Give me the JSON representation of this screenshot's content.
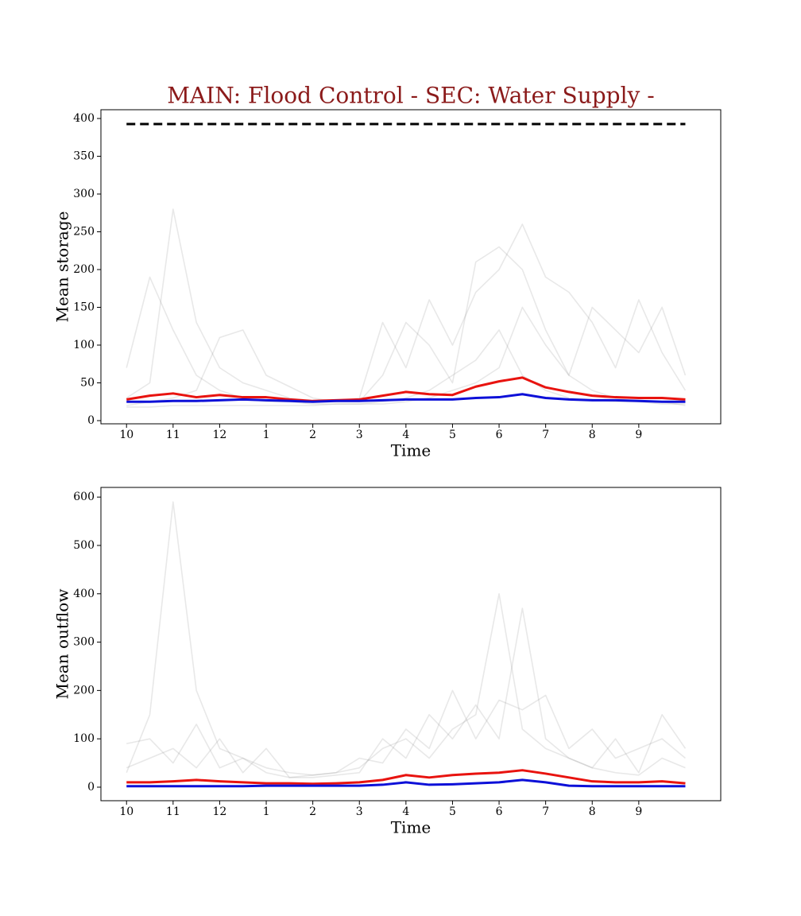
{
  "chart_data": [
    {
      "type": "line",
      "title": "MAIN: Flood Control - SEC: Water Supply -",
      "title_color": "#8b1a1a",
      "xlabel": "Time",
      "ylabel": "Mean storage",
      "x": [
        0,
        0.5,
        1,
        1.5,
        2,
        2.5,
        3,
        3.5,
        4,
        4.5,
        5,
        5.5,
        6,
        6.5,
        7,
        7.5,
        8,
        8.5,
        9,
        9.5,
        10,
        10.5,
        11,
        11.5,
        12
      ],
      "xlim": [
        -0.55,
        12.76
      ],
      "ylim": [
        -4.2,
        411.6
      ],
      "xticks": [
        {
          "value": 0,
          "label": "10"
        },
        {
          "value": 1,
          "label": "11"
        },
        {
          "value": 2,
          "label": "12"
        },
        {
          "value": 3,
          "label": "1"
        },
        {
          "value": 4,
          "label": "2"
        },
        {
          "value": 5,
          "label": "3"
        },
        {
          "value": 6,
          "label": "4"
        },
        {
          "value": 7,
          "label": "5"
        },
        {
          "value": 8,
          "label": "6"
        },
        {
          "value": 9,
          "label": "7"
        },
        {
          "value": 10,
          "label": "8"
        },
        {
          "value": 11,
          "label": "9"
        }
      ],
      "yticks": [
        0,
        50,
        100,
        150,
        200,
        250,
        300,
        350,
        400
      ],
      "hline": 392.6,
      "hline_color": "#000000",
      "series": [
        {
          "color": "rgba(128,128,128,0.18)",
          "values": [
            70,
            190,
            120,
            60,
            40,
            30,
            25,
            25,
            22,
            22,
            22,
            25,
            30,
            40,
            60,
            80,
            120,
            60,
            40,
            30,
            28,
            25,
            25,
            22,
            22
          ]
        },
        {
          "color": "rgba(128,128,128,0.18)",
          "values": [
            30,
            50,
            280,
            130,
            70,
            50,
            40,
            30,
            25,
            25,
            25,
            60,
            130,
            100,
            50,
            210,
            230,
            200,
            120,
            60,
            40,
            30,
            25,
            25,
            20
          ]
        },
        {
          "color": "rgba(128,128,128,0.18)",
          "values": [
            20,
            25,
            30,
            40,
            110,
            120,
            60,
            45,
            30,
            25,
            30,
            130,
            70,
            160,
            100,
            170,
            200,
            260,
            190,
            170,
            130,
            70,
            160,
            90,
            40
          ]
        },
        {
          "color": "rgba(128,128,128,0.18)",
          "values": [
            18,
            18,
            20,
            20,
            20,
            20,
            20,
            20,
            20,
            22,
            22,
            22,
            25,
            30,
            40,
            50,
            70,
            150,
            100,
            60,
            150,
            120,
            90,
            150,
            60
          ]
        },
        {
          "color": "#e8130f",
          "values": [
            28,
            33,
            36,
            31,
            34,
            31,
            31,
            28,
            26,
            27,
            28,
            33,
            38,
            35,
            34,
            45,
            52,
            57,
            44,
            38,
            33,
            31,
            30,
            30,
            28
          ]
        },
        {
          "color": "#0d10d8",
          "values": [
            25,
            25,
            26,
            26,
            27,
            28,
            27,
            26,
            25,
            26,
            26,
            27,
            28,
            28,
            28,
            30,
            31,
            35,
            30,
            28,
            27,
            27,
            26,
            25,
            25
          ]
        }
      ]
    },
    {
      "type": "line",
      "xlabel": "Time",
      "ylabel": "Mean outflow",
      "x": [
        0,
        0.5,
        1,
        1.5,
        2,
        2.5,
        3,
        3.5,
        4,
        4.5,
        5,
        5.5,
        6,
        6.5,
        7,
        7.5,
        8,
        8.5,
        9,
        9.5,
        10,
        10.5,
        11,
        11.5,
        12
      ],
      "xlim": [
        -0.55,
        12.76
      ],
      "ylim": [
        -28,
        620
      ],
      "xticks": [
        {
          "value": 0,
          "label": "10"
        },
        {
          "value": 1,
          "label": "11"
        },
        {
          "value": 2,
          "label": "12"
        },
        {
          "value": 3,
          "label": "1"
        },
        {
          "value": 4,
          "label": "2"
        },
        {
          "value": 5,
          "label": "3"
        },
        {
          "value": 6,
          "label": "4"
        },
        {
          "value": 7,
          "label": "5"
        },
        {
          "value": 8,
          "label": "6"
        },
        {
          "value": 9,
          "label": "7"
        },
        {
          "value": 10,
          "label": "8"
        },
        {
          "value": 11,
          "label": "9"
        }
      ],
      "yticks": [
        0,
        100,
        200,
        300,
        400,
        500,
        600
      ],
      "series": [
        {
          "color": "rgba(128,128,128,0.18)",
          "values": [
            30,
            150,
            590,
            200,
            80,
            60,
            40,
            30,
            25,
            30,
            40,
            80,
            100,
            60,
            120,
            150,
            400,
            120,
            80,
            60,
            40,
            30,
            25,
            60,
            40
          ]
        },
        {
          "color": "rgba(128,128,128,0.18)",
          "values": [
            90,
            100,
            50,
            130,
            40,
            60,
            30,
            20,
            20,
            25,
            30,
            100,
            60,
            150,
            100,
            170,
            100,
            370,
            100,
            60,
            40,
            100,
            30,
            150,
            80
          ]
        },
        {
          "color": "rgba(128,128,128,0.18)",
          "values": [
            40,
            60,
            80,
            40,
            100,
            30,
            80,
            20,
            25,
            30,
            60,
            50,
            120,
            80,
            200,
            100,
            180,
            160,
            190,
            80,
            120,
            60,
            80,
            100,
            60
          ]
        },
        {
          "color": "#e8130f",
          "values": [
            10,
            10,
            12,
            15,
            12,
            10,
            8,
            8,
            7,
            8,
            10,
            15,
            25,
            20,
            25,
            28,
            30,
            35,
            28,
            20,
            12,
            10,
            10,
            12,
            8
          ]
        },
        {
          "color": "#0d10d8",
          "values": [
            2,
            2,
            2,
            2,
            2,
            2,
            3,
            3,
            3,
            3,
            3,
            5,
            10,
            5,
            6,
            8,
            10,
            15,
            10,
            3,
            2,
            2,
            2,
            2,
            2
          ]
        }
      ]
    }
  ]
}
